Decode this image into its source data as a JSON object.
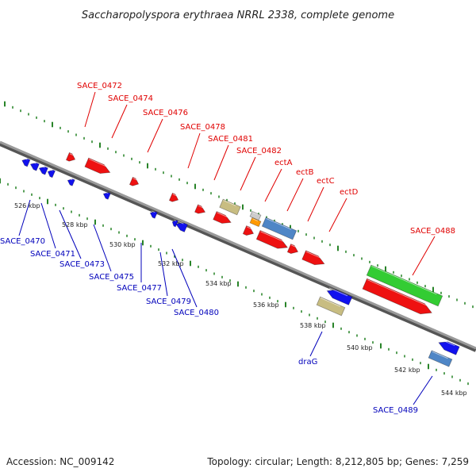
{
  "title": "Saccharopolyspora erythraea NRRL 2338, complete genome",
  "footer": {
    "accession": "Accession: NC_009142",
    "topology": "Topology: circular; Length: 8,212,805 bp; Genes: 7,259"
  },
  "colors": {
    "forward_strand": "#ee1111",
    "reverse_strand": "#1111ee",
    "rrna_green": "#33cc33",
    "khaki": "#c8bd82",
    "steelblue": "#4f86c6",
    "orange": "#ff9900",
    "gray": "#cccccc",
    "backbone": "#888888",
    "ticks": "#117711",
    "label_red": "#e00000",
    "label_blue": "#0000bb"
  },
  "kbp_ticks": [
    "526 kbp",
    "528 kbp",
    "530 kbp",
    "532 kbp",
    "534 kbp",
    "536 kbp",
    "538 kbp",
    "540 kbp",
    "542 kbp",
    "544 kbp"
  ],
  "top_labels": [
    "SACE_0472",
    "SACE_0474",
    "SACE_0476",
    "SACE_0478",
    "SACE_0481",
    "SACE_0482",
    "ectA",
    "ectB",
    "ectC",
    "ectD",
    "SACE_0488"
  ],
  "bottom_labels": [
    "SACE_0470",
    "SACE_0471",
    "SACE_0473",
    "SACE_0475",
    "SACE_0477",
    "SACE_0479",
    "SACE_0480",
    "draG",
    "SACE_0489"
  ]
}
